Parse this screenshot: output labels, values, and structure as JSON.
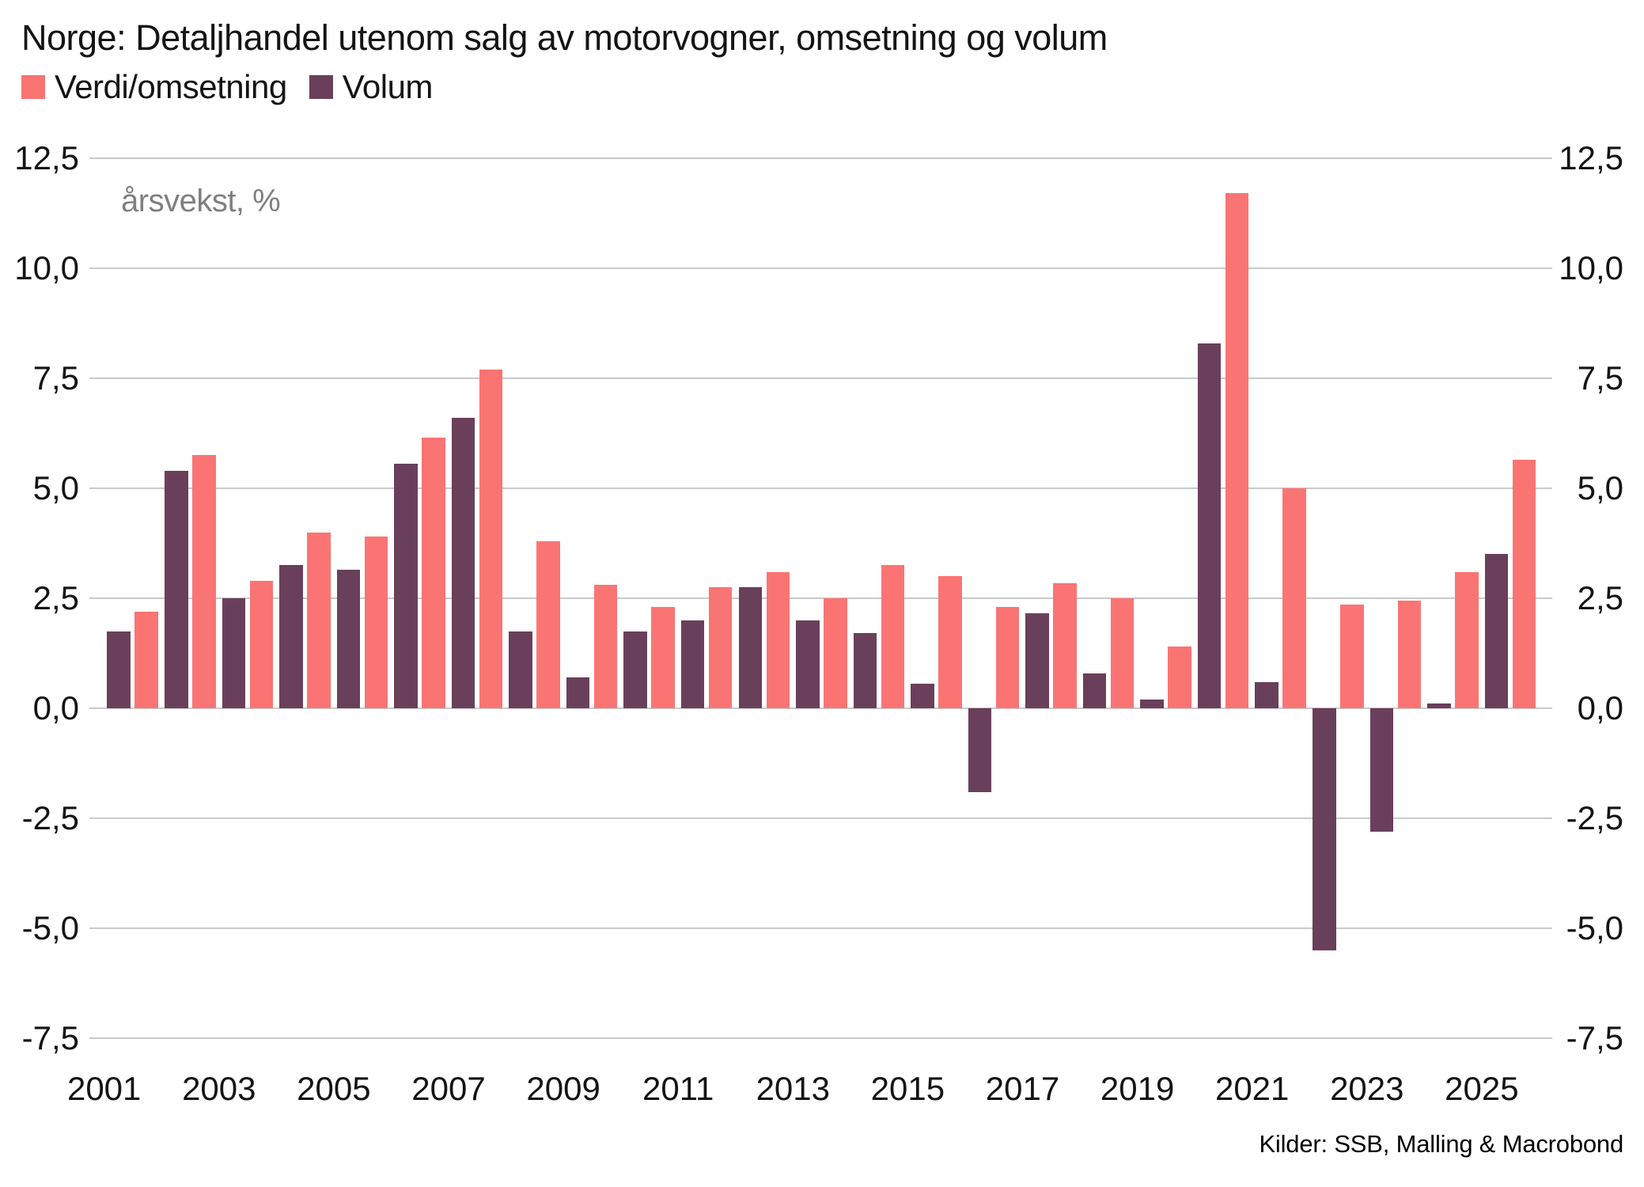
{
  "title": "Norge: Detaljhandel utenom salg av motorvogner, omsetning og volum",
  "annotation": "årsvekst, %",
  "source": "Kilder: SSB, Malling & Macrobond",
  "legend": [
    {
      "label": "Verdi/omsetning",
      "color": "#FB7474"
    },
    {
      "label": "Volum",
      "color": "#6A3F5B"
    }
  ],
  "colors": {
    "verdi": "#FB7474",
    "volum": "#6A3F5B",
    "gridline": "#cacaca",
    "annotation_text": "#7f7f7f",
    "background": "#ffffff"
  },
  "chart_data": {
    "type": "bar",
    "title": "Norge: Detaljhandel utenom salg av motorvogner, omsetning og volum",
    "subtitle_annotation": "årsvekst, %",
    "unit": "årsvekst, %",
    "categories": [
      2001,
      2002,
      2003,
      2004,
      2005,
      2006,
      2007,
      2008,
      2009,
      2010,
      2011,
      2012,
      2013,
      2014,
      2015,
      2016,
      2017,
      2018,
      2019,
      2020,
      2021,
      2022,
      2023,
      2024,
      2025
    ],
    "series": [
      {
        "name": "Verdi/omsetning",
        "color": "#FB7474",
        "values": [
          2.2,
          5.75,
          2.9,
          4.0,
          3.9,
          6.15,
          7.7,
          3.8,
          2.8,
          2.3,
          2.75,
          3.1,
          2.5,
          3.25,
          3.0,
          2.3,
          2.85,
          2.5,
          1.4,
          11.7,
          5.0,
          2.35,
          2.45,
          3.1,
          5.65
        ]
      },
      {
        "name": "Volum",
        "color": "#6A3F5B",
        "values": [
          1.75,
          5.4,
          2.5,
          3.25,
          3.15,
          5.55,
          6.6,
          1.75,
          0.7,
          1.75,
          2.0,
          2.75,
          2.0,
          1.7,
          0.55,
          -1.9,
          2.15,
          0.8,
          0.2,
          8.3,
          0.6,
          -5.5,
          -2.8,
          0.1,
          3.5
        ]
      }
    ],
    "bar_order": "Volum drawn left, Verdi/omsetning drawn right within each year pair",
    "ylim": [
      -7.5,
      12.5
    ],
    "grid": "horizontal",
    "legend_position": "top-left",
    "y_ticks": {
      "values": [
        12.5,
        10,
        7.5,
        5,
        2.5,
        0,
        -2.5,
        -5,
        -7.5
      ],
      "labels": [
        "12,5",
        "10,0",
        "7,5",
        "5,0",
        "2,5",
        "0,0",
        "-2,5",
        "-5,0",
        "-7,5"
      ],
      "sides": "both"
    },
    "x_ticks": [
      "2001",
      "2003",
      "2005",
      "2007",
      "2009",
      "2011",
      "2013",
      "2015",
      "2017",
      "2019",
      "2021",
      "2023",
      "2025"
    ]
  }
}
